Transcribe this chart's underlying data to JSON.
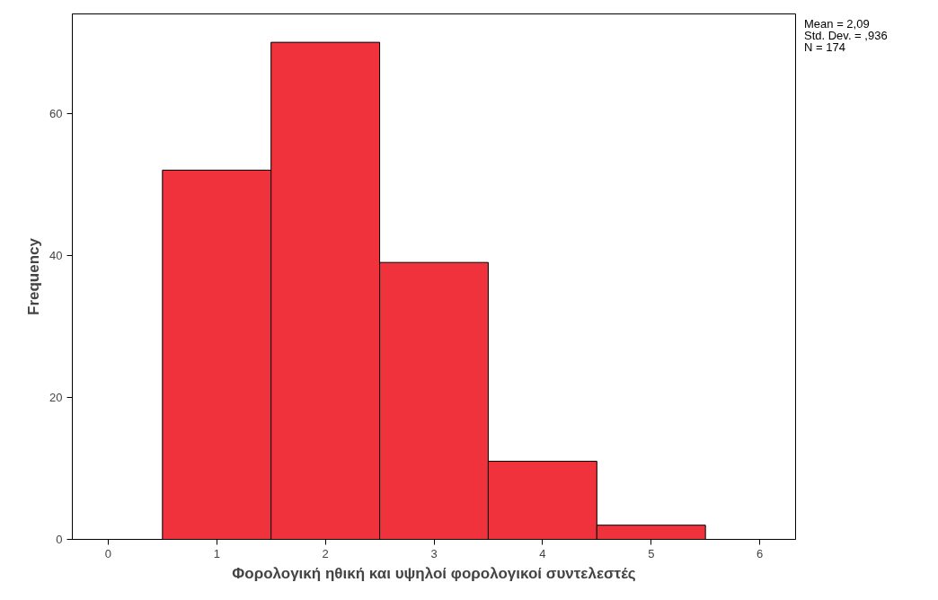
{
  "chart_data": {
    "type": "histogram",
    "xlabel": "Φορολογική ηθική και υψηλοί φορολογικοί συντελεστές",
    "ylabel": "Frequency",
    "bins": [
      0.5,
      1.5,
      2.5,
      3.5,
      4.5,
      5.5
    ],
    "values": [
      52,
      70,
      39,
      11,
      2
    ],
    "color": "#f0323c",
    "xlim": [
      -0.33,
      6.33
    ],
    "xticks": [
      0,
      1,
      2,
      3,
      4,
      5,
      6
    ],
    "ylim": [
      0,
      74
    ],
    "yticks": [
      0,
      20,
      40,
      60
    ],
    "grid": false,
    "annotations": [
      "Mean = 2,09",
      "Std. Dev. = ,936",
      "N = 174"
    ]
  }
}
